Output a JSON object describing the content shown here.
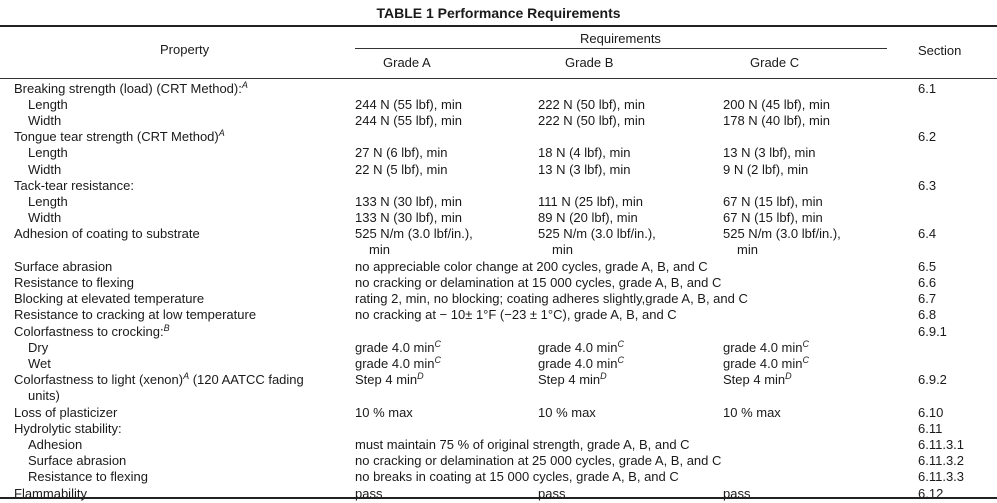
{
  "title": "TABLE 1 Performance Requirements",
  "headers": {
    "property": "Property",
    "requirements": "Requirements",
    "grade_a": "Grade A",
    "grade_b": "Grade B",
    "grade_c": "Grade C",
    "section": "Section"
  },
  "rows": [
    {
      "property": "Breaking strength (load) (CRT Method):",
      "sup": "A",
      "section": "6.1"
    },
    {
      "property": "Length",
      "indent": true,
      "a": "244 N (55 lbf), min",
      "b": "222 N (50 lbf), min",
      "c": "200 N (45 lbf), min"
    },
    {
      "property": "Width",
      "indent": true,
      "a": "244 N (55 lbf), min",
      "b": "222 N (50 lbf), min",
      "c": "178 N (40 lbf), min"
    },
    {
      "property": "Tongue tear strength (CRT Method)",
      "sup": "A",
      "section": "6.2"
    },
    {
      "property": "Length",
      "indent": true,
      "a": "27 N (6 lbf), min",
      "b": "18 N (4 lbf), min",
      "c": "13 N (3 lbf), min"
    },
    {
      "property": "Width",
      "indent": true,
      "a": "22 N (5 lbf), min",
      "b": "13 N (3 lbf), min",
      "c": "9 N (2 lbf), min"
    },
    {
      "property": "Tack-tear resistance:",
      "section": "6.3"
    },
    {
      "property": "Length",
      "indent": true,
      "a": "133 N (30 lbf), min",
      "b": "111 N (25 lbf), min",
      "c": "67 N (15 lbf), min"
    },
    {
      "property": "Width",
      "indent": true,
      "a": "133 N (30 lbf), min",
      "b": "89 N (20 lbf), min",
      "c": "67 N (15 lbf), min"
    },
    {
      "property": "Adhesion of coating to substrate",
      "a": "525 N/m (3.0 lbf/in.),",
      "a2": "min",
      "b": "525 N/m (3.0 lbf/in.),",
      "b2": "min",
      "c": "525 N/m (3.0 lbf/in.),",
      "c2": "min",
      "section": "6.4",
      "double": true
    },
    {
      "property": "Surface abrasion",
      "span": "no appreciable color change at 200 cycles, grade A, B, and C",
      "section": "6.5"
    },
    {
      "property": "Resistance to flexing",
      "span": "no cracking or delamination at 15  000 cycles, grade A, B, and C",
      "section": "6.6"
    },
    {
      "property": "Blocking at elevated temperature",
      "span": "rating 2, min, no blocking; coating adheres slightly,grade A, B, and C",
      "section": "6.7"
    },
    {
      "property": "Resistance to cracking at low temperature",
      "span": "no cracking at − 10± 1°F (−23 ± 1°C), grade A, B, and C",
      "section": "6.8"
    },
    {
      "property": "Colorfastness to crocking:",
      "sup": "B",
      "section": "6.9.1"
    },
    {
      "property": "Dry",
      "indent": true,
      "a": "grade 4.0 min",
      "a_sup": "C",
      "b": "grade 4.0 min",
      "b_sup": "C",
      "c": "grade 4.0 min",
      "c_sup": "C"
    },
    {
      "property": "Wet",
      "indent": true,
      "a": "grade 4.0 min",
      "a_sup": "C",
      "b": "grade 4.0 min",
      "b_sup": "C",
      "c": "grade 4.0 min",
      "c_sup": "C"
    },
    {
      "property": "Colorfastness to light (xenon)",
      "sup": "A",
      "property_tail": " (120 AATCC fading",
      "property2": "units)",
      "a": "Step 4 min",
      "a_sup": "D",
      "b": "Step 4 min",
      "b_sup": "D",
      "c": "Step 4 min",
      "c_sup": "D",
      "section": "6.9.2",
      "double": true
    },
    {
      "property": "Loss of plasticizer",
      "a": "10 % max",
      "b": "10 % max",
      "c": "10 % max",
      "section": "6.10"
    },
    {
      "property": "Hydrolytic stability:",
      "section": "6.11"
    },
    {
      "property": "Adhesion",
      "indent": true,
      "span": "must maintain 75 % of original strength, grade A, B, and C",
      "section": "6.11.3.1"
    },
    {
      "property": "Surface abrasion",
      "indent": true,
      "span": "no cracking or delamination at 25  000 cycles, grade A, B, and C",
      "section": "6.11.3.2"
    },
    {
      "property": "Resistance to flexing",
      "indent": true,
      "span": "no breaks in coating at 15  000 cycles, grade A, B, and C",
      "section": "6.11.3.3"
    },
    {
      "property": "Flammability",
      "a": "pass",
      "b": "pass",
      "c": "pass",
      "section": "6.12"
    }
  ]
}
